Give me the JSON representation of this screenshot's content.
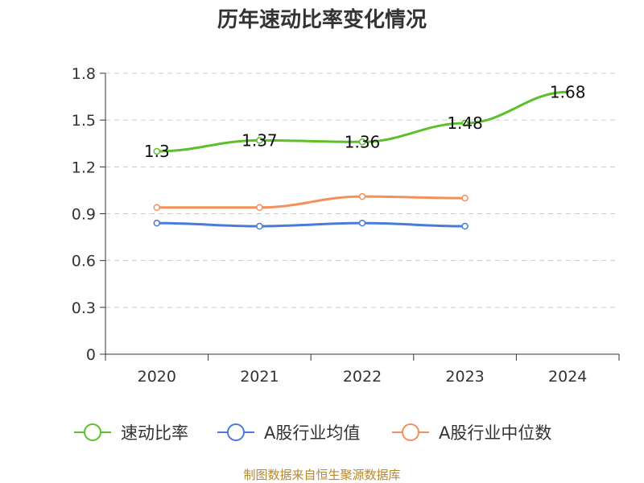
{
  "chart_data": {
    "type": "line",
    "title": "历年速动比率变化情况",
    "categories": [
      "2020",
      "2021",
      "2022",
      "2023",
      "2024"
    ],
    "ylim": [
      0,
      1.8
    ],
    "yticks": [
      "0",
      "0.3",
      "0.6",
      "0.9",
      "1.2",
      "1.5",
      "1.8"
    ],
    "grid": true,
    "legend_position": "bottom",
    "series": [
      {
        "name": "速动比率",
        "color": "#5bc02a",
        "values": [
          1.3,
          1.37,
          1.36,
          1.48,
          1.68
        ],
        "labels": [
          "1.3",
          "1.37",
          "1.36",
          "1.48",
          "1.68"
        ]
      },
      {
        "name": "A股行业均值",
        "color": "#4a7bd8",
        "values": [
          0.84,
          0.82,
          0.84,
          0.82,
          null
        ]
      },
      {
        "name": "A股行业中位数",
        "color": "#f5905a",
        "values": [
          0.94,
          0.94,
          1.01,
          1.0,
          null
        ]
      }
    ]
  },
  "footer": "制图数据来自恒生聚源数据库"
}
